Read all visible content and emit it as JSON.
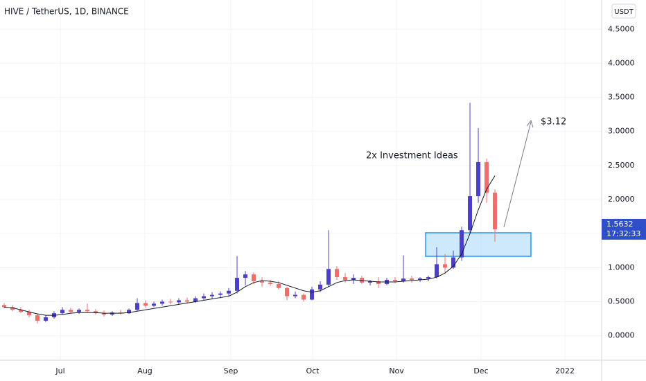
{
  "chart_data": {
    "type": "candlestick",
    "title": "HIVE / TetherUS, 1D, BINANCE",
    "currency": "USDT",
    "annotation": "2x Investment Ideas",
    "target_label": "$3.12",
    "last_price": 1.5632,
    "countdown": "17:32:33",
    "up_color": "#4c3fc7",
    "down_color": "#ef6e6c",
    "ma_color": "#131722",
    "price_label_color": "#2f4fc9",
    "grid": true,
    "xlim": [
      -0.5,
      71.83
    ],
    "xticks": [
      {
        "value": 6.75,
        "label": "Jul"
      },
      {
        "value": 16.92,
        "label": "Aug"
      },
      {
        "value": 27.25,
        "label": "Sep"
      },
      {
        "value": 37.08,
        "label": "Oct"
      },
      {
        "value": 47.17,
        "label": "Nov"
      },
      {
        "value": 57.33,
        "label": "Dec"
      },
      {
        "value": 67.42,
        "label": "2022"
      }
    ],
    "ylim": [
      -0.36,
      4.93
    ],
    "yticks": [
      {
        "value": 0,
        "label": "0.0000"
      },
      {
        "value": 0.5,
        "label": "0.5000"
      },
      {
        "value": 1,
        "label": "1.0000"
      },
      {
        "value": 1.5,
        "label": "1.5000"
      },
      {
        "value": 2,
        "label": "2.0000"
      },
      {
        "value": 2.5,
        "label": "2.5000"
      },
      {
        "value": 3,
        "label": "3.0000"
      },
      {
        "value": 3.5,
        "label": "3.5000"
      },
      {
        "value": 4,
        "label": "4.0000"
      },
      {
        "value": 4.5,
        "label": "4.5000"
      }
    ],
    "open": [
      0.45,
      0.42,
      0.38,
      0.35,
      0.3,
      0.22,
      0.27,
      0.33,
      0.38,
      0.35,
      0.38,
      0.36,
      0.33,
      0.31,
      0.34,
      0.33,
      0.38,
      0.48,
      0.44,
      0.47,
      0.5,
      0.49,
      0.52,
      0.5,
      0.55,
      0.58,
      0.6,
      0.62,
      0.66,
      0.85,
      0.9,
      0.8,
      0.78,
      0.76,
      0.7,
      0.58,
      0.6,
      0.53,
      0.68,
      0.75,
      0.98,
      0.86,
      0.82,
      0.85,
      0.78,
      0.8,
      0.76,
      0.82,
      0.8,
      0.84,
      0.82,
      0.84,
      0.86,
      1.05,
      1.0,
      1.15,
      1.55,
      2.05,
      2.55,
      2.1
    ],
    "high": [
      0.48,
      0.45,
      0.42,
      0.38,
      0.33,
      0.3,
      0.36,
      0.42,
      0.41,
      0.4,
      0.47,
      0.39,
      0.37,
      0.36,
      0.38,
      0.4,
      0.55,
      0.52,
      0.5,
      0.53,
      0.54,
      0.55,
      0.56,
      0.58,
      0.62,
      0.64,
      0.65,
      0.7,
      1.17,
      0.95,
      0.93,
      0.86,
      0.82,
      0.8,
      0.72,
      0.65,
      0.62,
      0.72,
      0.8,
      1.55,
      1.02,
      0.92,
      0.9,
      0.88,
      0.82,
      0.86,
      0.85,
      0.86,
      1.18,
      0.88,
      0.86,
      0.88,
      1.3,
      1.2,
      1.25,
      1.6,
      3.42,
      3.05,
      2.6,
      2.15
    ],
    "low": [
      0.4,
      0.36,
      0.33,
      0.27,
      0.18,
      0.2,
      0.25,
      0.31,
      0.33,
      0.32,
      0.34,
      0.31,
      0.28,
      0.29,
      0.31,
      0.32,
      0.36,
      0.41,
      0.42,
      0.44,
      0.46,
      0.46,
      0.47,
      0.48,
      0.52,
      0.54,
      0.55,
      0.58,
      0.62,
      0.74,
      0.76,
      0.72,
      0.73,
      0.68,
      0.52,
      0.55,
      0.5,
      0.52,
      0.64,
      0.72,
      0.82,
      0.78,
      0.76,
      0.76,
      0.74,
      0.7,
      0.74,
      0.77,
      0.78,
      0.78,
      0.79,
      0.8,
      0.84,
      0.92,
      0.98,
      1.1,
      1.5,
      1.95,
      1.95,
      1.38
    ],
    "close": [
      0.42,
      0.38,
      0.35,
      0.3,
      0.22,
      0.27,
      0.33,
      0.38,
      0.35,
      0.38,
      0.36,
      0.33,
      0.31,
      0.34,
      0.33,
      0.38,
      0.48,
      0.44,
      0.47,
      0.5,
      0.49,
      0.52,
      0.5,
      0.55,
      0.58,
      0.6,
      0.62,
      0.66,
      0.85,
      0.9,
      0.8,
      0.78,
      0.76,
      0.7,
      0.58,
      0.6,
      0.53,
      0.68,
      0.75,
      0.98,
      0.86,
      0.82,
      0.85,
      0.78,
      0.8,
      0.76,
      0.82,
      0.8,
      0.84,
      0.82,
      0.84,
      0.86,
      1.05,
      1.0,
      1.15,
      1.55,
      2.05,
      2.55,
      2.1,
      1.5632
    ],
    "ma": [
      0.42,
      0.41,
      0.38,
      0.35,
      0.32,
      0.3,
      0.3,
      0.31,
      0.33,
      0.34,
      0.34,
      0.34,
      0.33,
      0.33,
      0.33,
      0.34,
      0.36,
      0.38,
      0.4,
      0.42,
      0.44,
      0.46,
      0.48,
      0.5,
      0.52,
      0.54,
      0.56,
      0.58,
      0.64,
      0.72,
      0.78,
      0.81,
      0.8,
      0.78,
      0.74,
      0.7,
      0.66,
      0.64,
      0.66,
      0.72,
      0.78,
      0.81,
      0.82,
      0.81,
      0.8,
      0.79,
      0.79,
      0.79,
      0.8,
      0.81,
      0.82,
      0.83,
      0.86,
      0.92,
      1.02,
      1.2,
      1.5,
      1.85,
      2.15,
      2.35
    ]
  }
}
